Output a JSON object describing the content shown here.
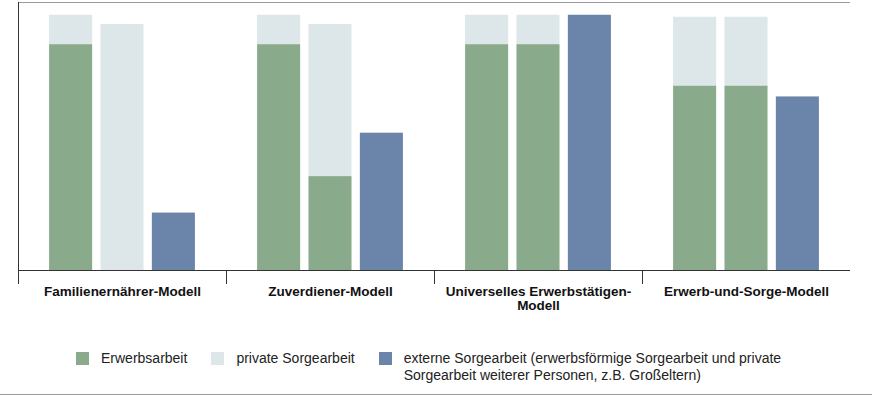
{
  "chart_data": {
    "type": "bar",
    "stacked": true,
    "tick_labels": false,
    "legend": "bottom",
    "categories": [
      "Familienernährer-Modell",
      "Zuverdiener-Modell",
      "Universelles Erwerbstätigen-Modell",
      "Erwerb-und-Sorge-Modell"
    ],
    "ylim": [
      0,
      105
    ],
    "series": [
      {
        "name": "Erwerbsarbeit",
        "color": "#8aaa8c",
        "values": [
          [
            88.5,
            0
          ],
          [
            88.5,
            36.8
          ],
          [
            88.5,
            88.5
          ],
          [
            72.3,
            72.3
          ]
        ]
      },
      {
        "name": "private Sorgearbeit",
        "color": "#dde6e8",
        "values": [
          [
            11.5,
            96.4
          ],
          [
            11.5,
            59.6
          ],
          [
            11.5,
            11.5
          ],
          [
            26.9,
            26.9
          ]
        ]
      },
      {
        "name": "externe Sorgearbeit (erwerbsförmige Sorgearbeit und private Sorgearbeit weiterer Personen, z.B. Großeltern)",
        "color": "#6a84aa",
        "values": [
          22.5,
          53.8,
          100,
          68
        ]
      }
    ]
  }
}
